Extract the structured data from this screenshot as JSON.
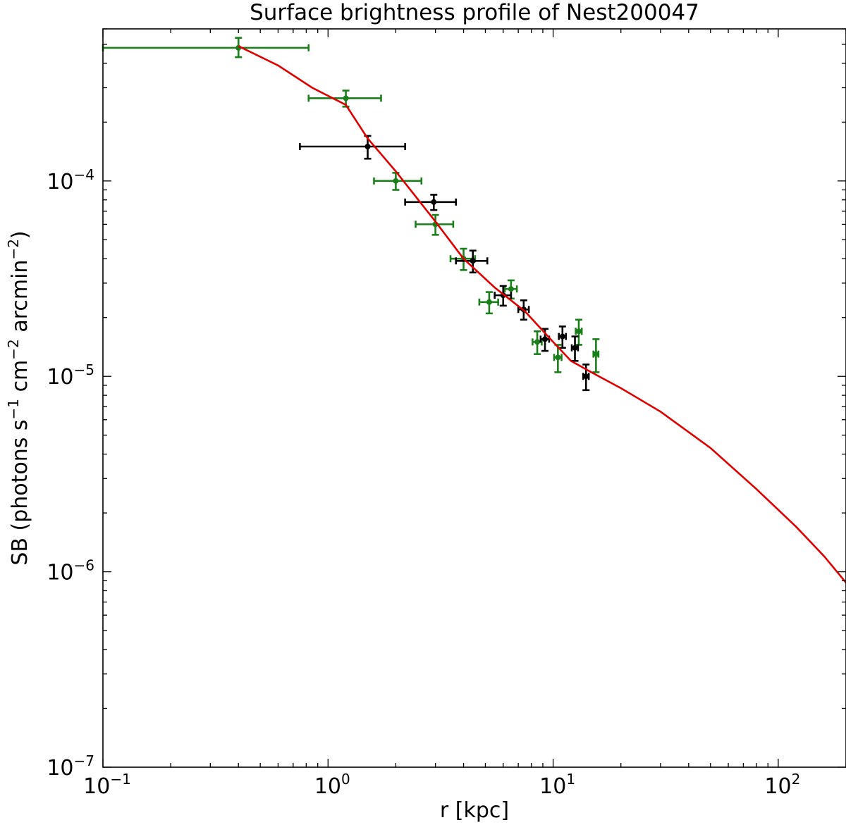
{
  "chart_data": {
    "type": "scatter",
    "title": "Surface brightness profile of Nest200047",
    "xlabel": "r [kpc]",
    "ylabel": "SB (photons s$^{-1}$ cm$^{-2}$ arcmin$^{-2}$)",
    "ylabel_parts": [
      "SB (photons s",
      "−1",
      " cm",
      "−2",
      " arcmin",
      "−2",
      ")"
    ],
    "xscale": "log",
    "yscale": "log",
    "xlim": [
      0.1,
      200
    ],
    "ylim": [
      1e-07,
      0.0006
    ],
    "x_ticks": [
      {
        "value": 0.1,
        "base": "10",
        "exp": "−1"
      },
      {
        "value": 1,
        "base": "10",
        "exp": "0"
      },
      {
        "value": 10,
        "base": "10",
        "exp": "1"
      },
      {
        "value": 100,
        "base": "10",
        "exp": "2"
      }
    ],
    "y_ticks": [
      {
        "value": 1e-07,
        "base": "10",
        "exp": "−7"
      },
      {
        "value": 1e-06,
        "base": "10",
        "exp": "−6"
      },
      {
        "value": 1e-05,
        "base": "10",
        "exp": "−5"
      },
      {
        "value": 0.0001,
        "base": "10",
        "exp": "−4"
      }
    ],
    "grid": false,
    "series": [
      {
        "color": "#1a7f1a",
        "kind": "errorbar",
        "points": [
          {
            "x": 0.4,
            "y": 0.00048,
            "xerr": [
              0.1,
              0.82
            ],
            "yerr": [
              0.00043,
              0.00054
            ]
          },
          {
            "x": 1.2,
            "y": 0.000265,
            "xerr": [
              0.82,
              1.72
            ],
            "yerr": [
              0.00024,
              0.00029
            ]
          },
          {
            "x": 2.0,
            "y": 0.0001,
            "xerr": [
              1.6,
              2.6
            ],
            "yerr": [
              9e-05,
              0.00011
            ]
          },
          {
            "x": 3.0,
            "y": 6e-05,
            "xerr": [
              2.45,
              3.6
            ],
            "yerr": [
              5.3e-05,
              6.7e-05
            ]
          },
          {
            "x": 4.0,
            "y": 4e-05,
            "xerr": [
              3.5,
              4.5
            ],
            "yerr": [
              3.5e-05,
              4.5e-05
            ]
          },
          {
            "x": 5.2,
            "y": 2.4e-05,
            "xerr": [
              4.7,
              5.7
            ],
            "yerr": [
              2.1e-05,
              2.7e-05
            ]
          },
          {
            "x": 6.5,
            "y": 2.8e-05,
            "xerr": [
              6.1,
              6.9
            ],
            "yerr": [
              2.5e-05,
              3.1e-05
            ]
          },
          {
            "x": 8.5,
            "y": 1.5e-05,
            "xerr": [
              8.1,
              8.9
            ],
            "yerr": [
              1.3e-05,
              1.7e-05
            ]
          },
          {
            "x": 10.5,
            "y": 1.25e-05,
            "xerr": [
              10.1,
              10.9
            ],
            "yerr": [
              1.05e-05,
              1.45e-05
            ]
          },
          {
            "x": 13.0,
            "y": 1.7e-05,
            "xerr": [
              12.6,
              13.4
            ],
            "yerr": [
              1.45e-05,
              1.95e-05
            ]
          },
          {
            "x": 15.5,
            "y": 1.3e-05,
            "xerr": [
              15.1,
              15.9
            ],
            "yerr": [
              1.05e-05,
              1.55e-05
            ]
          }
        ]
      },
      {
        "color": "#000000",
        "kind": "errorbar",
        "points": [
          {
            "x": 1.5,
            "y": 0.00015,
            "xerr": [
              0.75,
              2.2
            ],
            "yerr": [
              0.00013,
              0.00017
            ]
          },
          {
            "x": 2.95,
            "y": 7.8e-05,
            "xerr": [
              2.2,
              3.7
            ],
            "yerr": [
              7.1e-05,
              8.5e-05
            ]
          },
          {
            "x": 4.4,
            "y": 3.9e-05,
            "xerr": [
              3.7,
              5.1
            ],
            "yerr": [
              3.4e-05,
              4.4e-05
            ]
          },
          {
            "x": 6.0,
            "y": 2.6e-05,
            "xerr": [
              5.5,
              6.5
            ],
            "yerr": [
              2.3e-05,
              2.9e-05
            ]
          },
          {
            "x": 7.4,
            "y": 2.2e-05,
            "xerr": [
              7.0,
              7.8
            ],
            "yerr": [
              1.95e-05,
              2.45e-05
            ]
          },
          {
            "x": 9.2,
            "y": 1.55e-05,
            "xerr": [
              8.8,
              9.6
            ],
            "yerr": [
              1.35e-05,
              1.75e-05
            ]
          },
          {
            "x": 11.0,
            "y": 1.6e-05,
            "xerr": [
              10.6,
              11.4
            ],
            "yerr": [
              1.4e-05,
              1.8e-05
            ]
          },
          {
            "x": 12.5,
            "y": 1.4e-05,
            "xerr": [
              12.1,
              12.9
            ],
            "yerr": [
              1.2e-05,
              1.6e-05
            ]
          },
          {
            "x": 14.0,
            "y": 1e-05,
            "xerr": [
              13.6,
              14.4
            ],
            "yerr": [
              8.5e-06,
              1.15e-05
            ]
          }
        ]
      }
    ],
    "model": {
      "color": "#e00000",
      "x": [
        0.4,
        0.6,
        0.85,
        1.2,
        1.5,
        2.0,
        3.0,
        4.0,
        5.5,
        7.5,
        10,
        12,
        15,
        20,
        30,
        50,
        80,
        120,
        160,
        200
      ],
      "y": [
        0.00049,
        0.00039,
        0.0003,
        0.000245,
        0.000165,
        0.000112,
        6.2e-05,
        4e-05,
        2.85e-05,
        2.15e-05,
        1.5e-05,
        1.2e-05,
        1.04e-05,
        8.7e-06,
        6.6e-06,
        4.3e-06,
        2.65e-06,
        1.7e-06,
        1.2e-06,
        8.8e-07
      ]
    }
  }
}
